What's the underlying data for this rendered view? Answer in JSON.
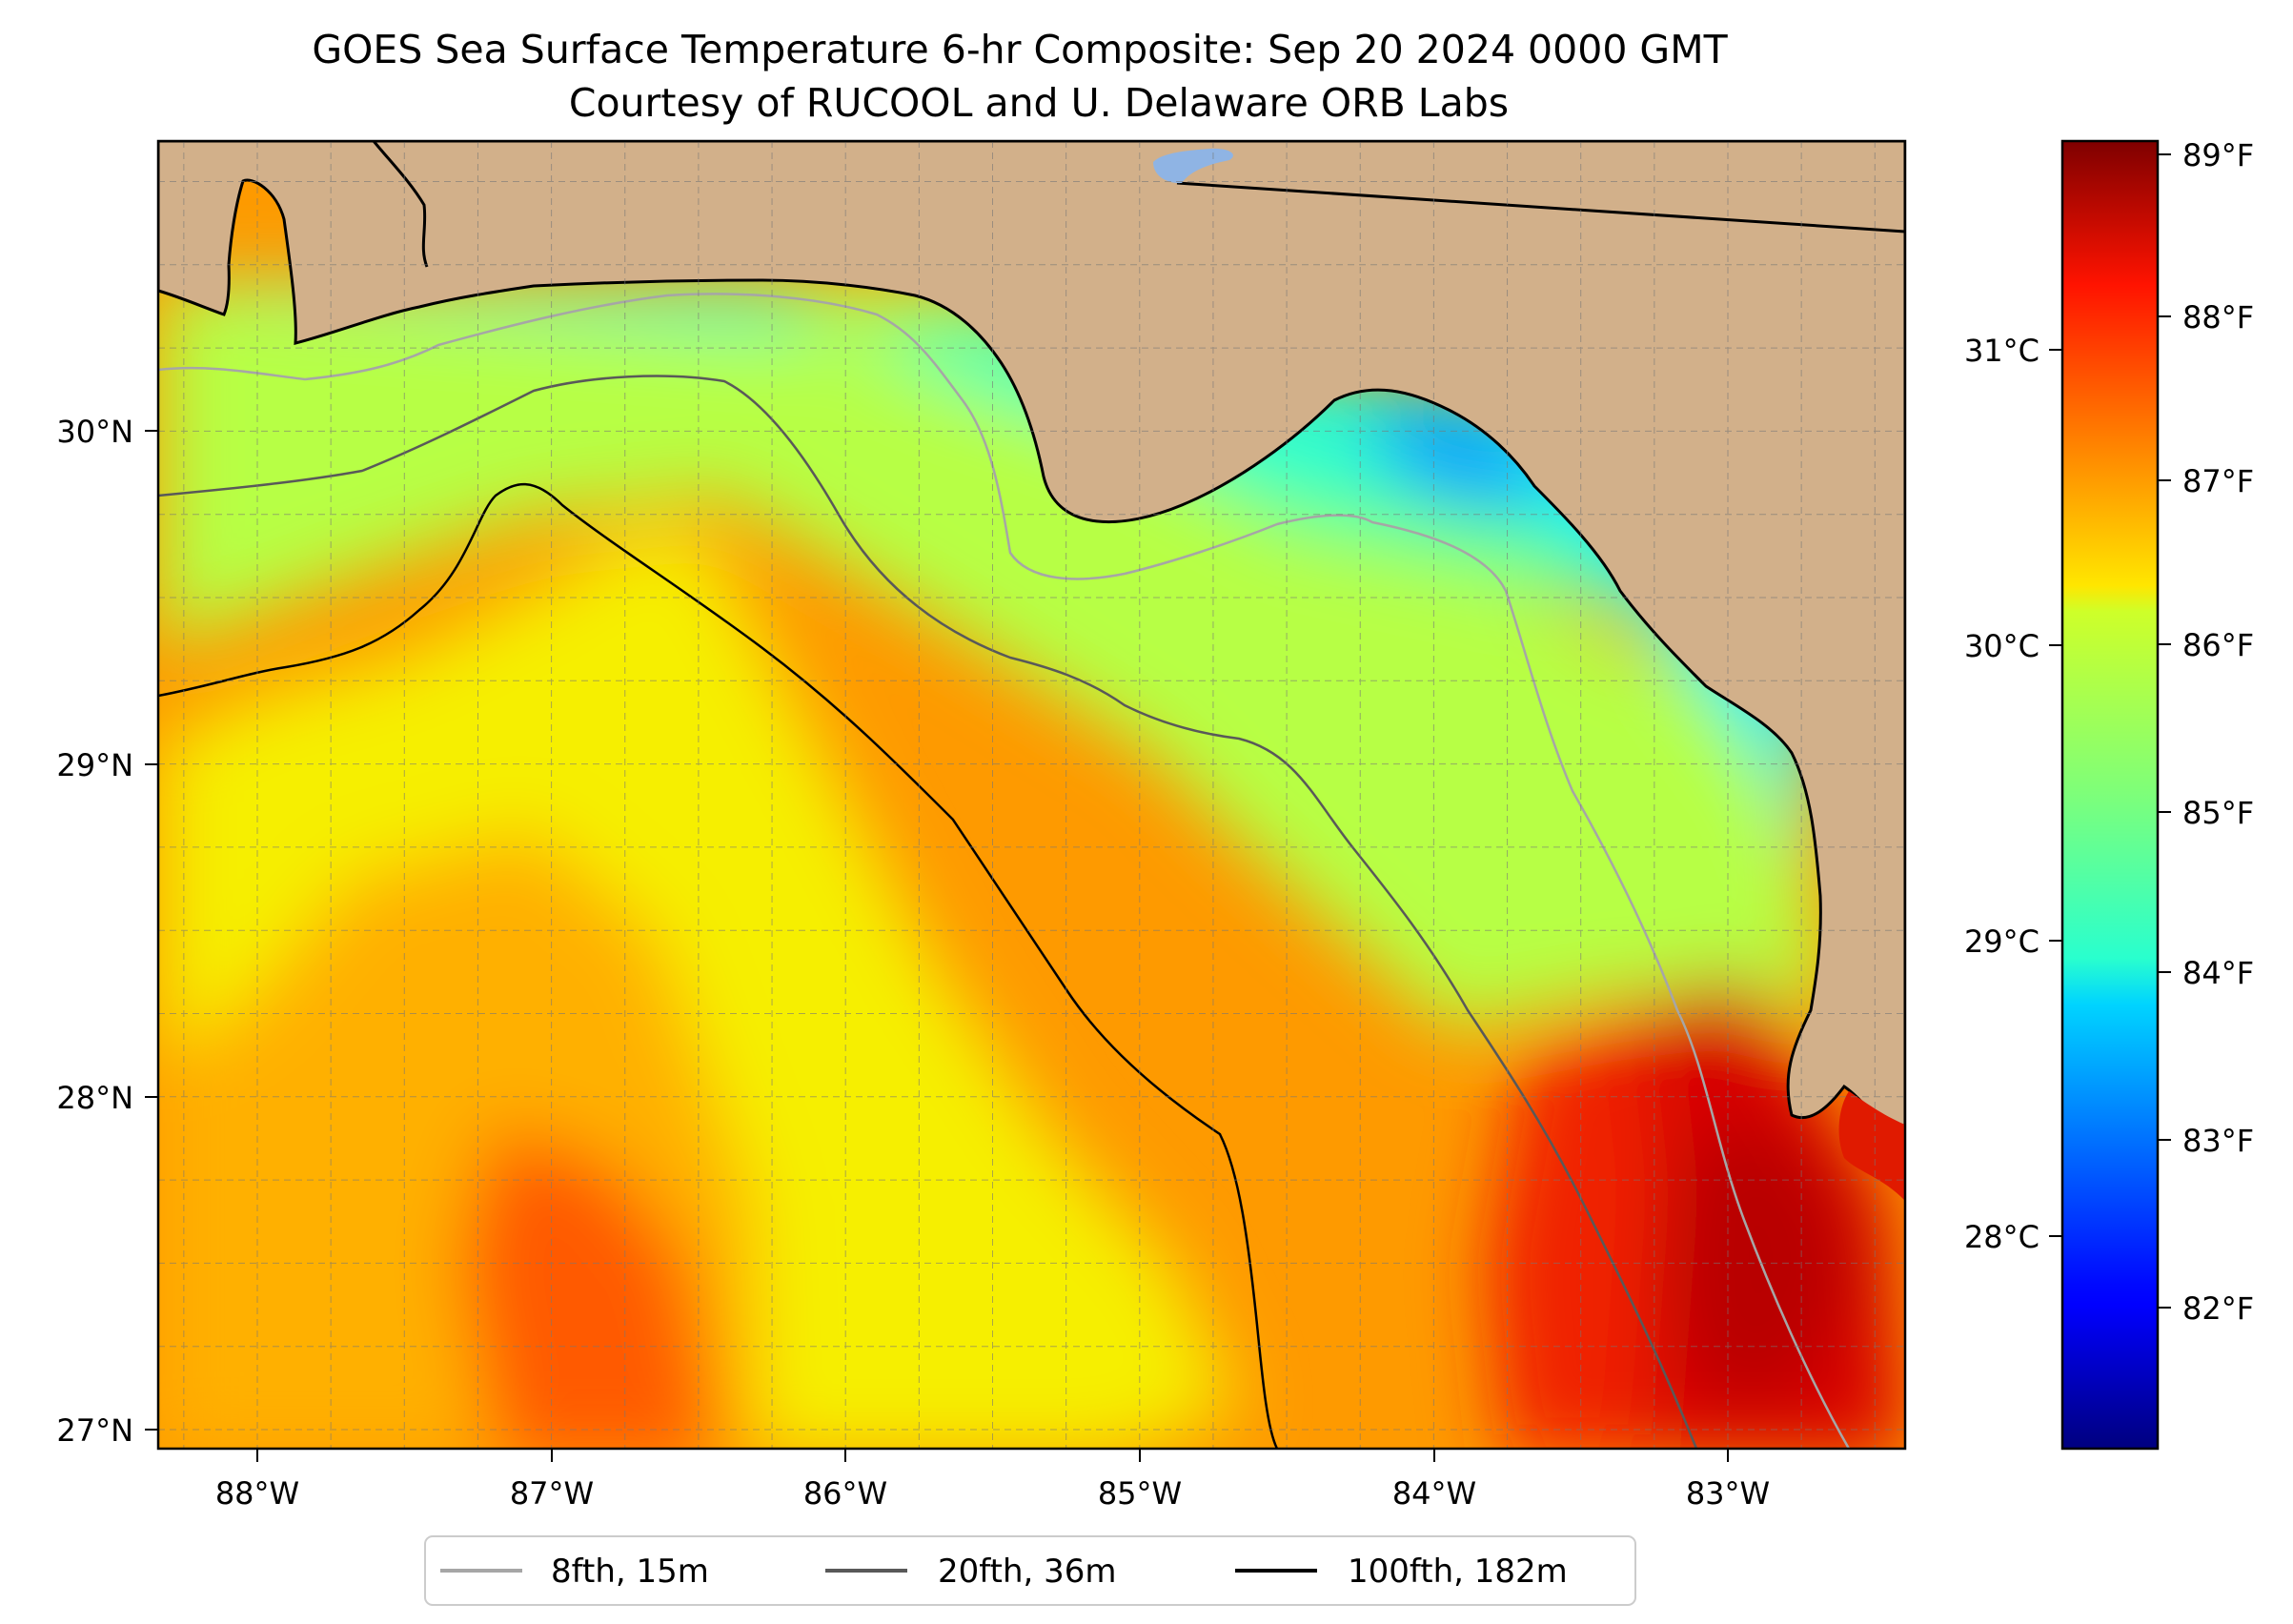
{
  "title": "GOES Sea Surface Temperature 6-hr Composite: Sep 20 2024 0000 GMT",
  "subtitle": "Courtesy of RUCOOL and U. Delaware ORB Labs",
  "map": {
    "lon_range": [
      -88.33,
      -82.39
    ],
    "lat_range": [
      26.93,
      30.86
    ],
    "lon_ticks": [
      "88°W",
      "87°W",
      "86°W",
      "85°W",
      "84°W",
      "83°W"
    ],
    "lat_ticks": [
      "27°N",
      "28°N",
      "29°N",
      "30°N"
    ],
    "land_color": "#d2b08a",
    "grid": true
  },
  "colorbar": {
    "colormap": "jet",
    "f_range": [
      81.3,
      89.1
    ],
    "f_ticks": [
      "82°F",
      "83°F",
      "84°F",
      "85°F",
      "86°F",
      "87°F",
      "88°F",
      "89°F"
    ],
    "c_ticks": [
      "28°C",
      "29°C",
      "30°C",
      "31°C"
    ]
  },
  "legend": {
    "items": [
      {
        "label": "8fth, 15m",
        "color": "#a6a6a6"
      },
      {
        "label": "20fth, 36m",
        "color": "#595959"
      },
      {
        "label": "100fth, 182m",
        "color": "#000000"
      }
    ]
  }
}
